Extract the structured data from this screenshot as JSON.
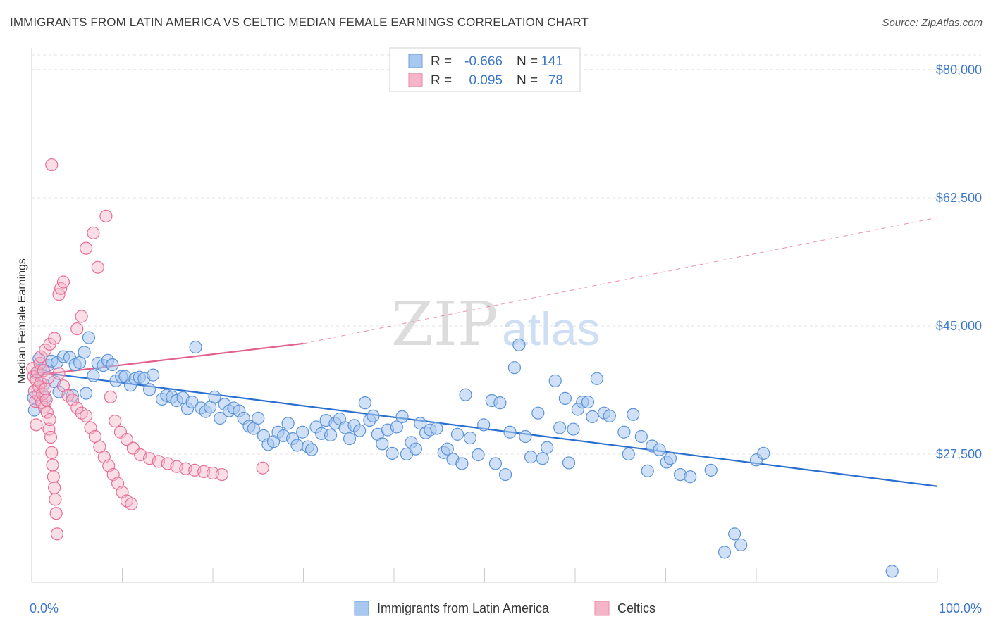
{
  "header": {
    "title": "IMMIGRANTS FROM LATIN AMERICA VS CELTIC MEDIAN FEMALE EARNINGS CORRELATION CHART",
    "source": "Source: ZipAtlas.com"
  },
  "watermark": {
    "zip": "ZIP",
    "atlas": "atlas"
  },
  "legend": {
    "rows": [
      {
        "r_label": "R =",
        "r_value": "-0.666",
        "n_label": "N =",
        "n_value": "141",
        "color": "#a9c8f0"
      },
      {
        "r_label": "R =",
        "r_value": "0.095",
        "n_label": "N =",
        "n_value": "78",
        "color": "#f5b5c8"
      }
    ]
  },
  "bottom_legend": [
    {
      "label": "Immigrants from Latin America",
      "color": "#a9c8f0"
    },
    {
      "label": "Celtics",
      "color": "#f5b5c8"
    }
  ],
  "chart_data": {
    "type": "scatter",
    "title": "IMMIGRANTS FROM LATIN AMERICA VS CELTIC MEDIAN FEMALE EARNINGS CORRELATION CHART",
    "xlabel": "",
    "ylabel": "Median Female Earnings",
    "xlim": [
      0,
      100
    ],
    "ylim": [
      10000,
      82000
    ],
    "x_tick_labels": [
      "0.0%",
      "100.0%"
    ],
    "y_ticks": [
      27500,
      45000,
      62500,
      80000
    ],
    "y_tick_labels": [
      "$27,500",
      "$45,000",
      "$62,500",
      "$80,000"
    ],
    "grid": true,
    "colors": {
      "blue": "#5b93d8",
      "blue_fill": "#a9c8f0",
      "pink": "#e86d96",
      "pink_fill": "#f5b5c8",
      "blue_line": "#2a6fcf",
      "pink_line": "#e2608c"
    },
    "series": [
      {
        "name": "Immigrants from Latin America",
        "trend": {
          "x": [
            0,
            100
          ],
          "y": [
            38800,
            23100
          ]
        },
        "points": [
          [
            0.2,
            35200
          ],
          [
            0.5,
            38500
          ],
          [
            0.8,
            40500
          ],
          [
            1.0,
            39000
          ],
          [
            1.3,
            37000
          ],
          [
            1.8,
            39600
          ],
          [
            2.2,
            40200
          ],
          [
            2.8,
            40000
          ],
          [
            3.5,
            40800
          ],
          [
            4.2,
            40700
          ],
          [
            4.8,
            39700
          ],
          [
            5.3,
            40000
          ],
          [
            5.8,
            41400
          ],
          [
            6.3,
            43400
          ],
          [
            6.8,
            38200
          ],
          [
            7.3,
            39900
          ],
          [
            7.9,
            39600
          ],
          [
            8.4,
            40300
          ],
          [
            8.9,
            39700
          ],
          [
            9.3,
            37500
          ],
          [
            9.9,
            38100
          ],
          [
            10.3,
            38100
          ],
          [
            10.9,
            36900
          ],
          [
            11.4,
            37800
          ],
          [
            11.9,
            38000
          ],
          [
            12.4,
            37800
          ],
          [
            13.0,
            36300
          ],
          [
            13.4,
            38300
          ],
          [
            14.4,
            35000
          ],
          [
            14.9,
            35500
          ],
          [
            15.5,
            35300
          ],
          [
            16.0,
            34800
          ],
          [
            16.7,
            35200
          ],
          [
            17.2,
            33700
          ],
          [
            17.7,
            34600
          ],
          [
            18.1,
            42100
          ],
          [
            18.7,
            33800
          ],
          [
            19.2,
            33300
          ],
          [
            19.7,
            33900
          ],
          [
            20.2,
            35300
          ],
          [
            20.8,
            32400
          ],
          [
            21.3,
            34300
          ],
          [
            21.8,
            33400
          ],
          [
            22.3,
            33800
          ],
          [
            22.9,
            33400
          ],
          [
            23.4,
            32400
          ],
          [
            24.0,
            31300
          ],
          [
            24.5,
            31000
          ],
          [
            25.0,
            32400
          ],
          [
            25.6,
            30000
          ],
          [
            26.1,
            28800
          ],
          [
            26.7,
            29200
          ],
          [
            27.2,
            30500
          ],
          [
            27.8,
            30000
          ],
          [
            28.3,
            31700
          ],
          [
            28.8,
            29600
          ],
          [
            29.3,
            28700
          ],
          [
            29.9,
            30500
          ],
          [
            30.5,
            28500
          ],
          [
            30.9,
            28100
          ],
          [
            31.4,
            31200
          ],
          [
            32.0,
            30300
          ],
          [
            32.5,
            32100
          ],
          [
            33.0,
            30100
          ],
          [
            33.5,
            31700
          ],
          [
            34.0,
            32300
          ],
          [
            34.6,
            31100
          ],
          [
            35.1,
            29600
          ],
          [
            35.6,
            31400
          ],
          [
            36.2,
            30700
          ],
          [
            36.8,
            34500
          ],
          [
            37.3,
            32100
          ],
          [
            37.7,
            32700
          ],
          [
            38.2,
            30200
          ],
          [
            38.7,
            28900
          ],
          [
            39.3,
            30800
          ],
          [
            39.8,
            27600
          ],
          [
            40.3,
            31200
          ],
          [
            40.9,
            32600
          ],
          [
            41.4,
            27500
          ],
          [
            41.9,
            29100
          ],
          [
            42.4,
            28200
          ],
          [
            42.9,
            31700
          ],
          [
            43.5,
            30400
          ],
          [
            44.0,
            30800
          ],
          [
            44.7,
            31000
          ],
          [
            45.5,
            27700
          ],
          [
            45.9,
            28200
          ],
          [
            46.5,
            26800
          ],
          [
            47.0,
            30200
          ],
          [
            47.9,
            35600
          ],
          [
            47.5,
            26200
          ],
          [
            48.4,
            29700
          ],
          [
            49.3,
            27400
          ],
          [
            49.9,
            31500
          ],
          [
            50.8,
            34800
          ],
          [
            51.2,
            26200
          ],
          [
            51.7,
            34500
          ],
          [
            52.3,
            24700
          ],
          [
            52.8,
            30500
          ],
          [
            53.8,
            42400
          ],
          [
            53.3,
            39300
          ],
          [
            54.5,
            29900
          ],
          [
            55.1,
            27100
          ],
          [
            55.9,
            33100
          ],
          [
            56.4,
            26900
          ],
          [
            56.9,
            28400
          ],
          [
            57.8,
            37500
          ],
          [
            58.3,
            31100
          ],
          [
            58.9,
            35100
          ],
          [
            59.3,
            26300
          ],
          [
            59.8,
            30900
          ],
          [
            60.3,
            33600
          ],
          [
            60.8,
            34600
          ],
          [
            61.4,
            34600
          ],
          [
            61.9,
            32600
          ],
          [
            62.4,
            37800
          ],
          [
            63.2,
            33100
          ],
          [
            63.8,
            32700
          ],
          [
            65.4,
            30500
          ],
          [
            65.9,
            27500
          ],
          [
            66.4,
            32900
          ],
          [
            67.3,
            29900
          ],
          [
            68.0,
            25200
          ],
          [
            68.5,
            28600
          ],
          [
            69.3,
            28100
          ],
          [
            70.1,
            26400
          ],
          [
            70.5,
            26900
          ],
          [
            71.6,
            24700
          ],
          [
            72.7,
            24400
          ],
          [
            75.0,
            25300
          ],
          [
            76.5,
            14100
          ],
          [
            77.6,
            16600
          ],
          [
            78.3,
            15100
          ],
          [
            80.0,
            26700
          ],
          [
            80.8,
            27600
          ],
          [
            95.0,
            11500
          ],
          [
            0.3,
            33500
          ],
          [
            1.5,
            35200
          ],
          [
            2.5,
            37400
          ],
          [
            3.0,
            36000
          ],
          [
            4.5,
            35500
          ],
          [
            6.0,
            35800
          ]
        ]
      },
      {
        "name": "Celtics",
        "trend": {
          "x": [
            0,
            30
          ],
          "y": [
            38200,
            42600
          ],
          "ext_x": [
            30,
            100
          ],
          "ext_y": [
            42600,
            59800
          ]
        },
        "points": [
          [
            0.1,
            39200
          ],
          [
            0.2,
            38100
          ],
          [
            0.3,
            36100
          ],
          [
            0.4,
            34700
          ],
          [
            0.5,
            37600
          ],
          [
            0.6,
            38700
          ],
          [
            0.7,
            35600
          ],
          [
            0.8,
            36700
          ],
          [
            0.9,
            39900
          ],
          [
            1.0,
            37200
          ],
          [
            1.1,
            34500
          ],
          [
            1.2,
            35700
          ],
          [
            1.3,
            38900
          ],
          [
            1.4,
            33900
          ],
          [
            1.5,
            36400
          ],
          [
            1.6,
            34900
          ],
          [
            1.7,
            33200
          ],
          [
            1.8,
            37900
          ],
          [
            1.9,
            30900
          ],
          [
            2.0,
            32200
          ],
          [
            2.1,
            29800
          ],
          [
            2.2,
            27700
          ],
          [
            2.3,
            26000
          ],
          [
            2.4,
            24400
          ],
          [
            2.5,
            22900
          ],
          [
            2.6,
            21300
          ],
          [
            2.7,
            19400
          ],
          [
            2.8,
            16600
          ],
          [
            1.0,
            40800
          ],
          [
            1.5,
            41700
          ],
          [
            2.0,
            42500
          ],
          [
            2.5,
            43300
          ],
          [
            3.0,
            49300
          ],
          [
            3.2,
            50100
          ],
          [
            3.5,
            51000
          ],
          [
            2.2,
            67000
          ],
          [
            3.0,
            38500
          ],
          [
            3.5,
            36800
          ],
          [
            4.0,
            35500
          ],
          [
            4.5,
            34900
          ],
          [
            5.0,
            33800
          ],
          [
            5.5,
            33100
          ],
          [
            6.0,
            32700
          ],
          [
            6.5,
            31100
          ],
          [
            7.0,
            29900
          ],
          [
            7.5,
            28500
          ],
          [
            8.0,
            27100
          ],
          [
            8.5,
            25900
          ],
          [
            9.0,
            24700
          ],
          [
            9.5,
            23500
          ],
          [
            10.0,
            22300
          ],
          [
            10.5,
            21100
          ],
          [
            11.0,
            20700
          ],
          [
            5.0,
            44600
          ],
          [
            5.5,
            46300
          ],
          [
            6.0,
            55600
          ],
          [
            6.8,
            57700
          ],
          [
            7.3,
            53000
          ],
          [
            8.2,
            60000
          ],
          [
            8.7,
            35300
          ],
          [
            9.2,
            32000
          ],
          [
            9.8,
            30500
          ],
          [
            10.5,
            29500
          ],
          [
            11.2,
            28300
          ],
          [
            12.0,
            27400
          ],
          [
            13.0,
            26900
          ],
          [
            14.0,
            26500
          ],
          [
            15.0,
            26200
          ],
          [
            16.0,
            25800
          ],
          [
            17.0,
            25500
          ],
          [
            18.0,
            25300
          ],
          [
            19.0,
            25100
          ],
          [
            20.0,
            24900
          ],
          [
            21.0,
            24700
          ],
          [
            25.5,
            25600
          ],
          [
            0.5,
            31500
          ]
        ]
      }
    ]
  }
}
